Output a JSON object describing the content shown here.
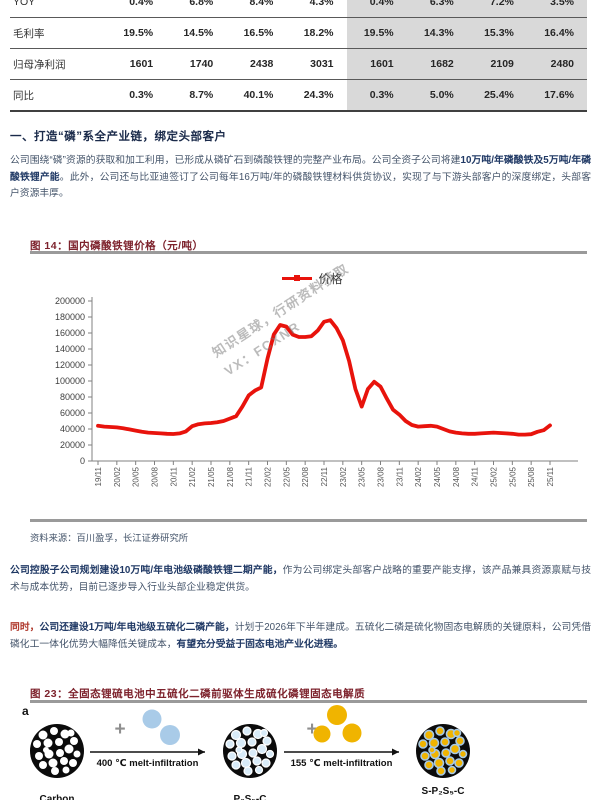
{
  "section_heading": "一、打造“磷”系全产业链，绑定头部客户",
  "table": {
    "highlight_start_col": 4,
    "rows": [
      {
        "label": "YOY",
        "values": [
          "0.4%",
          "6.8%",
          "8.4%",
          "4.3%",
          "0.4%",
          "6.3%",
          "7.2%",
          "3.5%"
        ]
      },
      {
        "label": "毛利率",
        "values": [
          "19.5%",
          "14.5%",
          "16.5%",
          "18.2%",
          "19.5%",
          "14.3%",
          "15.3%",
          "16.4%"
        ]
      },
      {
        "label": "归母净利润",
        "values": [
          "1601",
          "1740",
          "2438",
          "3031",
          "1601",
          "1682",
          "2109",
          "2480"
        ]
      },
      {
        "label": "同比",
        "values": [
          "0.3%",
          "8.7%",
          "40.1%",
          "24.3%",
          "0.3%",
          "5.0%",
          "25.4%",
          "17.6%"
        ]
      }
    ]
  },
  "paragraphs": [
    {
      "id": "para-industry-chain",
      "segments": [
        {
          "t": "公司围绕“磷”资源的获取和加工利用，已形成从磷矿石到磷酸铁锂的完整产业布局。公司全资子公司将建",
          "s": "n"
        },
        {
          "t": "10万吨/年磷酸铁及5万吨/年磷酸铁锂产能",
          "s": "b"
        },
        {
          "t": "。此外，公司还与比亚迪签订了公司每年16万吨/年的磷酸铁锂材料供货协议，实现了与下游头部客户的深度绑定，头部客户资源丰厚。",
          "s": "n"
        }
      ]
    },
    {
      "id": "para-lfp-capacity",
      "segments": [
        {
          "t": "公司控股子公司规划建设10万吨/年电池级磷酸铁锂二期产能，",
          "s": "b"
        },
        {
          "t": "作为公司绑定头部客户战略的重要产能支撑，该产品兼具资源禀赋与技术与成本优势，目前已逐步导入行业头部企业稳定供货。",
          "s": "n"
        }
      ]
    },
    {
      "id": "para-p2s5",
      "segments": [
        {
          "t": "同时，",
          "s": "r"
        },
        {
          "t": "公司还建设1万吨/年电池级五硫化二磷产能，",
          "s": "b"
        },
        {
          "t": "计划于2026年下半年建成。五硫化二磷是硫化物固态电解质的关键原料，公司凭借磷化工一体化优势大幅降低关键成本，",
          "s": "n"
        },
        {
          "t": "有望充分受益于固态电池产业化进程。",
          "s": "b"
        }
      ]
    }
  ],
  "figure14": {
    "title": "图 14：国内磷酸铁锂价格（元/吨）",
    "source": "资料来源：百川盈孚，长江证券研究所"
  },
  "watermark": {
    "lines": [
      "知识星球，行研资料获取",
      "VX：FCXNR"
    ]
  },
  "chart_data": {
    "type": "line",
    "title": "国内磷酸铁锂价格（元/吨）",
    "legend": "价格",
    "line_color": "#e8130c",
    "ylim": [
      0,
      200000
    ],
    "ytick_step": 20000,
    "grid": false,
    "legend_position": "top-center",
    "x_tick_every": 3,
    "x": [
      "19/11",
      "19/12",
      "20/01",
      "20/02",
      "20/03",
      "20/04",
      "20/05",
      "20/06",
      "20/07",
      "20/08",
      "20/09",
      "20/10",
      "20/11",
      "20/12",
      "21/01",
      "21/02",
      "21/03",
      "21/04",
      "21/05",
      "21/06",
      "21/07",
      "21/08",
      "21/09",
      "21/10",
      "21/11",
      "21/12",
      "22/01",
      "22/02",
      "22/03",
      "22/04",
      "22/05",
      "22/06",
      "22/07",
      "22/08",
      "22/09",
      "22/10",
      "22/11",
      "22/12",
      "23/01",
      "23/02",
      "23/03",
      "23/04",
      "23/05",
      "23/06",
      "23/07",
      "23/08",
      "23/09",
      "23/10",
      "23/11",
      "23/12",
      "24/01",
      "24/02",
      "24/03",
      "24/04",
      "24/05",
      "24/06",
      "24/07",
      "24/08",
      "24/09",
      "24/10",
      "24/11",
      "24/12",
      "25/01",
      "25/02",
      "25/03",
      "25/04",
      "25/05",
      "25/06",
      "25/07",
      "25/08",
      "25/09",
      "25/10",
      "25/11"
    ],
    "values": [
      44000,
      43000,
      42500,
      42000,
      41000,
      39500,
      38000,
      36500,
      35500,
      35000,
      34500,
      34000,
      33800,
      34500,
      37000,
      43500,
      46000,
      47000,
      47500,
      48500,
      50000,
      53000,
      56000,
      68000,
      82000,
      88000,
      92000,
      128000,
      158000,
      170000,
      168000,
      158000,
      155000,
      155000,
      156000,
      163000,
      174000,
      176000,
      166000,
      151000,
      125000,
      90000,
      68000,
      90000,
      99000,
      93000,
      78000,
      64000,
      58000,
      50000,
      45000,
      43000,
      43500,
      44000,
      43000,
      40000,
      37000,
      35500,
      34500,
      34000,
      34000,
      34500,
      35000,
      35500,
      35000,
      34500,
      34000,
      33000,
      33000,
      33500,
      36500,
      38500,
      44500
    ]
  },
  "figure23": {
    "title": "图 23：全固态锂硫电池中五硫化二磷前驱体生成硫化磷锂固态电解质"
  },
  "diagram": {
    "panel_label": "a",
    "stages": [
      {
        "name": "carbon-sphere",
        "label": "Carbon",
        "dot_style": "white"
      },
      {
        "name": "p2s5-carbon-sphere",
        "label": "P₂S₅-C",
        "dot_style": "blue"
      },
      {
        "name": "s-p2s5-carbon-sphere",
        "label": "S-P₂S₅-C",
        "dot_style": "yellow-on-blue"
      }
    ],
    "arrows": [
      {
        "label": "400 ℃ melt-infiltration",
        "additive_color": "#a9cbe8"
      },
      {
        "label": "155 ℃ melt-infiltration",
        "additive_color": "#f0b400"
      }
    ],
    "colors": {
      "sphere": "#0b0b0b",
      "blue_dot": "#d8ebf8",
      "yellow_dot": "#f0b400",
      "plus": "#8f8f8f"
    }
  }
}
